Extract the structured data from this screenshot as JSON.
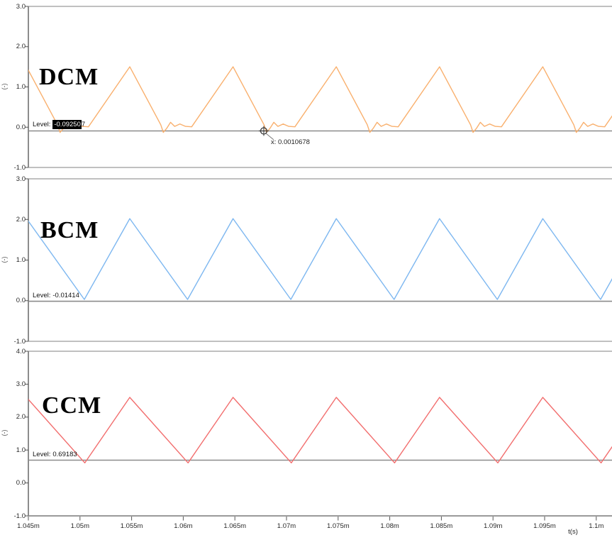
{
  "chart_data": {
    "type": "line",
    "description": "Three stacked scope panes of periodic inductor-current waveforms",
    "xlabel": "t(s)",
    "x_tick_labels": [
      "1.045m",
      "1.05m",
      "1.055m",
      "1.06m",
      "1.065m",
      "1.07m",
      "1.075m",
      "1.08m",
      "1.085m",
      "1.09m",
      "1.095m",
      "1.1m"
    ],
    "x_start_s": 0.001045,
    "x_tick_step_s": 5e-06,
    "cursor": {
      "x_label": "x: 0.0010678",
      "x_s": 0.0010678,
      "panel_index": 0
    },
    "panels": [
      {
        "name": "DCM",
        "ylabel": "(-)",
        "color": "#f9b06e",
        "ylim": [
          -1,
          3
        ],
        "y_ticks": [
          {
            "label": "3.0",
            "v": 3
          },
          {
            "label": "2.0",
            "v": 2
          },
          {
            "label": "1.0",
            "v": 1
          },
          {
            "label": "0.0",
            "v": 0
          },
          {
            "label": "-1.0",
            "v": -1
          }
        ],
        "level_label": "Level:",
        "level": -0.092507,
        "level_value_selected": "-0.09250",
        "level_value_rest": "7",
        "waveform": {
          "period_s": 1e-05,
          "peak_anchor_s": 0.00105482,
          "peak": 1.5,
          "shape": [
            [
              0,
              1.5
            ],
            [
              0.3,
              0.06
            ],
            [
              0.325,
              -0.13
            ],
            [
              0.36,
              -0.02
            ],
            [
              0.395,
              0.12
            ],
            [
              0.435,
              0.02
            ],
            [
              0.485,
              0.08
            ],
            [
              0.54,
              0.02
            ],
            [
              0.6,
              0.01
            ],
            [
              1,
              1.5
            ]
          ]
        }
      },
      {
        "name": "BCM",
        "ylabel": "(-)",
        "color": "#7db7f0",
        "ylim": [
          -1,
          3
        ],
        "y_ticks": [
          {
            "label": "3.0",
            "v": 3
          },
          {
            "label": "2.0",
            "v": 2
          },
          {
            "label": "1.0",
            "v": 1
          },
          {
            "label": "0.0",
            "v": 0
          },
          {
            "label": "-1.0",
            "v": -1
          }
        ],
        "level_label": "Level:",
        "level": -0.01414,
        "level_value": "-0.01414",
        "waveform": {
          "period_s": 1e-05,
          "peak_anchor_s": 0.00105482,
          "peak": 2.02,
          "shape": [
            [
              0,
              2.02
            ],
            [
              0.56,
              0.03
            ],
            [
              1,
              2.02
            ]
          ]
        }
      },
      {
        "name": "CCM",
        "ylabel": "(-)",
        "color": "#f26e6e",
        "ylim": [
          -1,
          4
        ],
        "y_ticks": [
          {
            "label": "4.0",
            "v": 4
          },
          {
            "label": "3.0",
            "v": 3
          },
          {
            "label": "2.0",
            "v": 2
          },
          {
            "label": "1.0",
            "v": 1
          },
          {
            "label": "0.0",
            "v": 0
          },
          {
            "label": "-1.0",
            "v": -1
          }
        ],
        "level_label": "Level:",
        "level": 0.69183,
        "level_value": "0.69183",
        "waveform": {
          "period_s": 1e-05,
          "peak_anchor_s": 0.00105482,
          "peak": 2.6,
          "shape": [
            [
              0,
              2.6
            ],
            [
              0.565,
              0.61
            ],
            [
              1,
              2.6
            ]
          ]
        }
      }
    ]
  }
}
